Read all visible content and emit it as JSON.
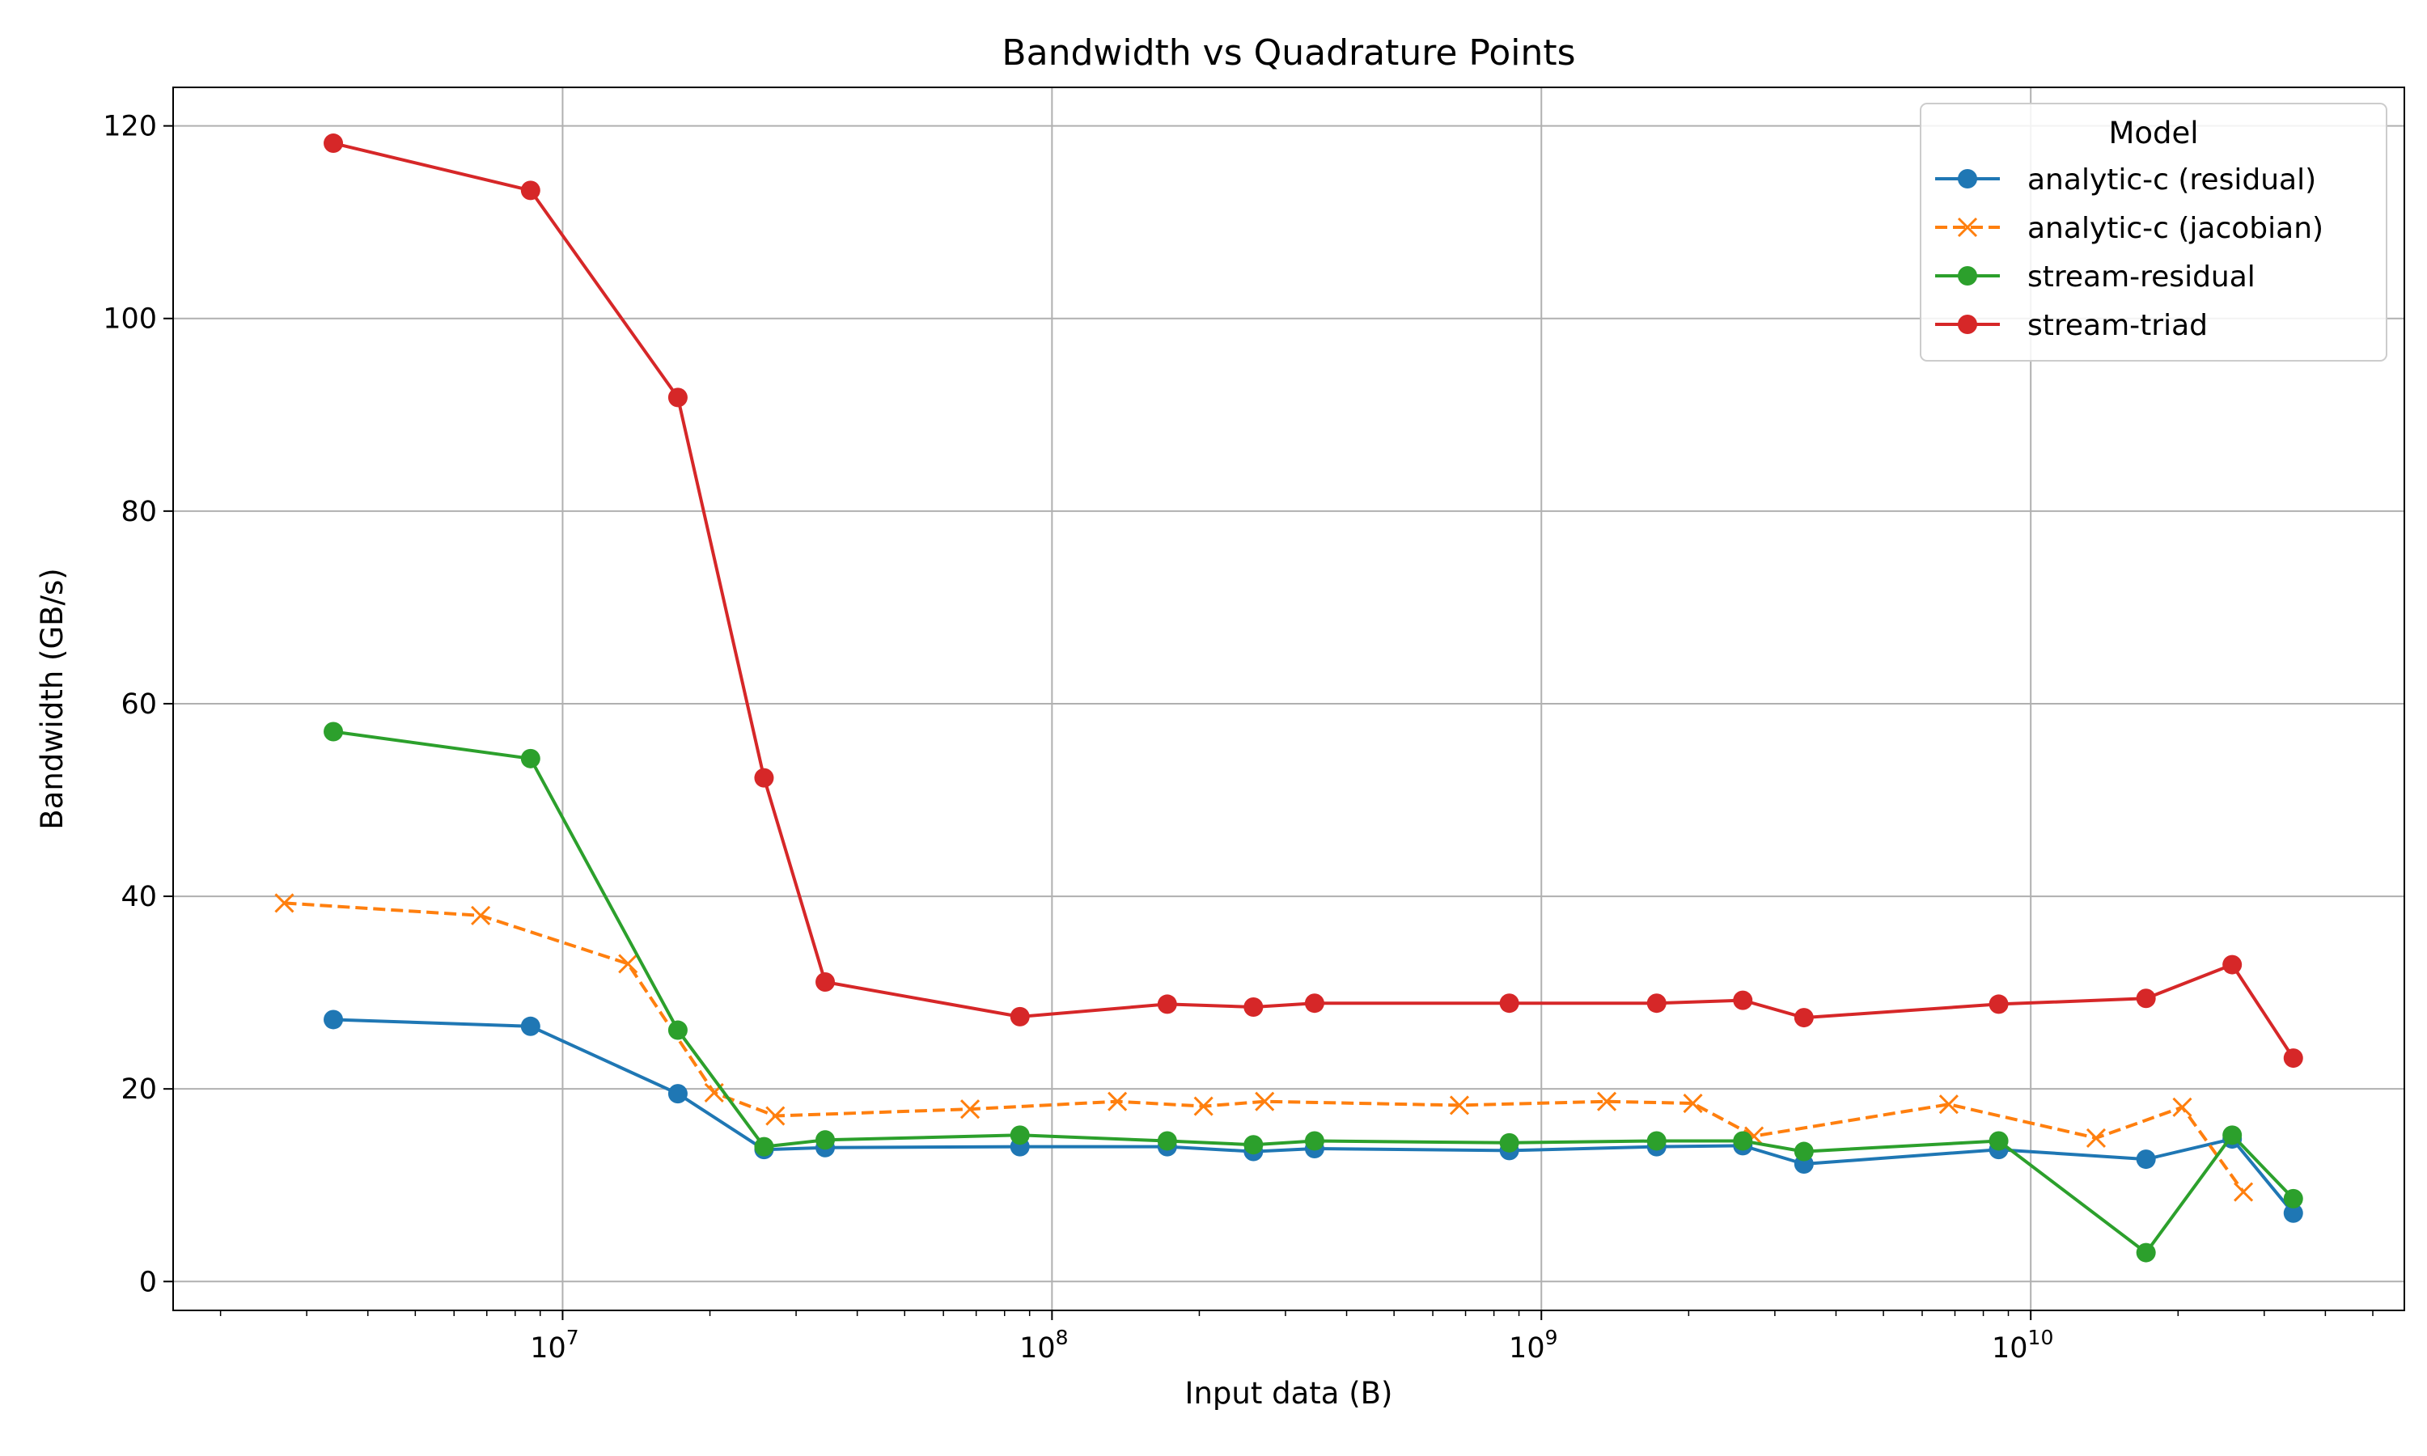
{
  "chart_data": {
    "type": "line",
    "title": "Bandwidth vs Quadrature Points",
    "xlabel": "Input data (B)",
    "ylabel": "Bandwidth (GB/s)",
    "xscale": "log",
    "xlim": [
      1600000,
      58000000000
    ],
    "ylim": [
      -3,
      124
    ],
    "x_ticks": [
      {
        "value": 10000000,
        "base": "10",
        "exp": "7"
      },
      {
        "value": 100000000,
        "base": "10",
        "exp": "8"
      },
      {
        "value": 1000000000,
        "base": "10",
        "exp": "9"
      },
      {
        "value": 10000000000,
        "base": "10",
        "exp": "10"
      }
    ],
    "y_ticks": [
      0,
      20,
      40,
      60,
      80,
      100,
      120
    ],
    "grid": true,
    "legend": {
      "title": "Model",
      "position": "top-right"
    },
    "series": [
      {
        "name": "analytic-c (residual)",
        "color": "#1f77b4",
        "marker": "circle",
        "dash": "solid",
        "x": [
          3400000,
          8600000,
          17200000,
          25800000,
          34400000,
          86000000,
          172000000,
          258000000,
          344000000,
          860000000,
          1720000000,
          2580000000,
          3440000000,
          8600000000,
          17200000000,
          25800000000,
          34400000000
        ],
        "y": [
          27.2,
          26.5,
          19.5,
          13.7,
          13.9,
          14.0,
          14.0,
          13.5,
          13.8,
          13.6,
          14.0,
          14.1,
          12.2,
          13.7,
          12.7,
          14.8,
          7.1
        ]
      },
      {
        "name": "analytic-c (jacobian)",
        "color": "#ff7f0e",
        "marker": "x",
        "dash": "dashed",
        "x": [
          2700000,
          6800000,
          13600000,
          20400000,
          27200000,
          68000000,
          136000000,
          204000000,
          272000000,
          680000000,
          1360000000,
          2040000000,
          2720000000,
          6800000000,
          13600000000,
          20400000000,
          27200000000
        ],
        "y": [
          39.3,
          38.0,
          33.0,
          19.6,
          17.2,
          17.9,
          18.7,
          18.2,
          18.7,
          18.3,
          18.7,
          18.5,
          15.1,
          18.4,
          14.9,
          18.1,
          9.3
        ]
      },
      {
        "name": "stream-residual",
        "color": "#2ca02c",
        "marker": "circle",
        "dash": "solid",
        "x": [
          3400000,
          8600000,
          17200000,
          25800000,
          34400000,
          86000000,
          172000000,
          258000000,
          344000000,
          860000000,
          1720000000,
          2580000000,
          3440000000,
          8600000000,
          17200000000,
          25800000000,
          34400000000
        ],
        "y": [
          57.1,
          54.3,
          26.1,
          14.0,
          14.7,
          15.2,
          14.6,
          14.2,
          14.6,
          14.4,
          14.6,
          14.6,
          13.5,
          14.6,
          3.0,
          15.2,
          8.6
        ]
      },
      {
        "name": "stream-triad",
        "color": "#d62728",
        "marker": "circle",
        "dash": "solid",
        "x": [
          3400000,
          8600000,
          17200000,
          25800000,
          34400000,
          86000000,
          172000000,
          258000000,
          344000000,
          860000000,
          1720000000,
          2580000000,
          3440000000,
          8600000000,
          17200000000,
          25800000000,
          34400000000
        ],
        "y": [
          118.2,
          113.3,
          91.8,
          52.3,
          31.1,
          27.5,
          28.8,
          28.5,
          28.9,
          28.9,
          28.9,
          29.2,
          27.4,
          28.8,
          29.4,
          32.9,
          23.2
        ]
      }
    ]
  }
}
